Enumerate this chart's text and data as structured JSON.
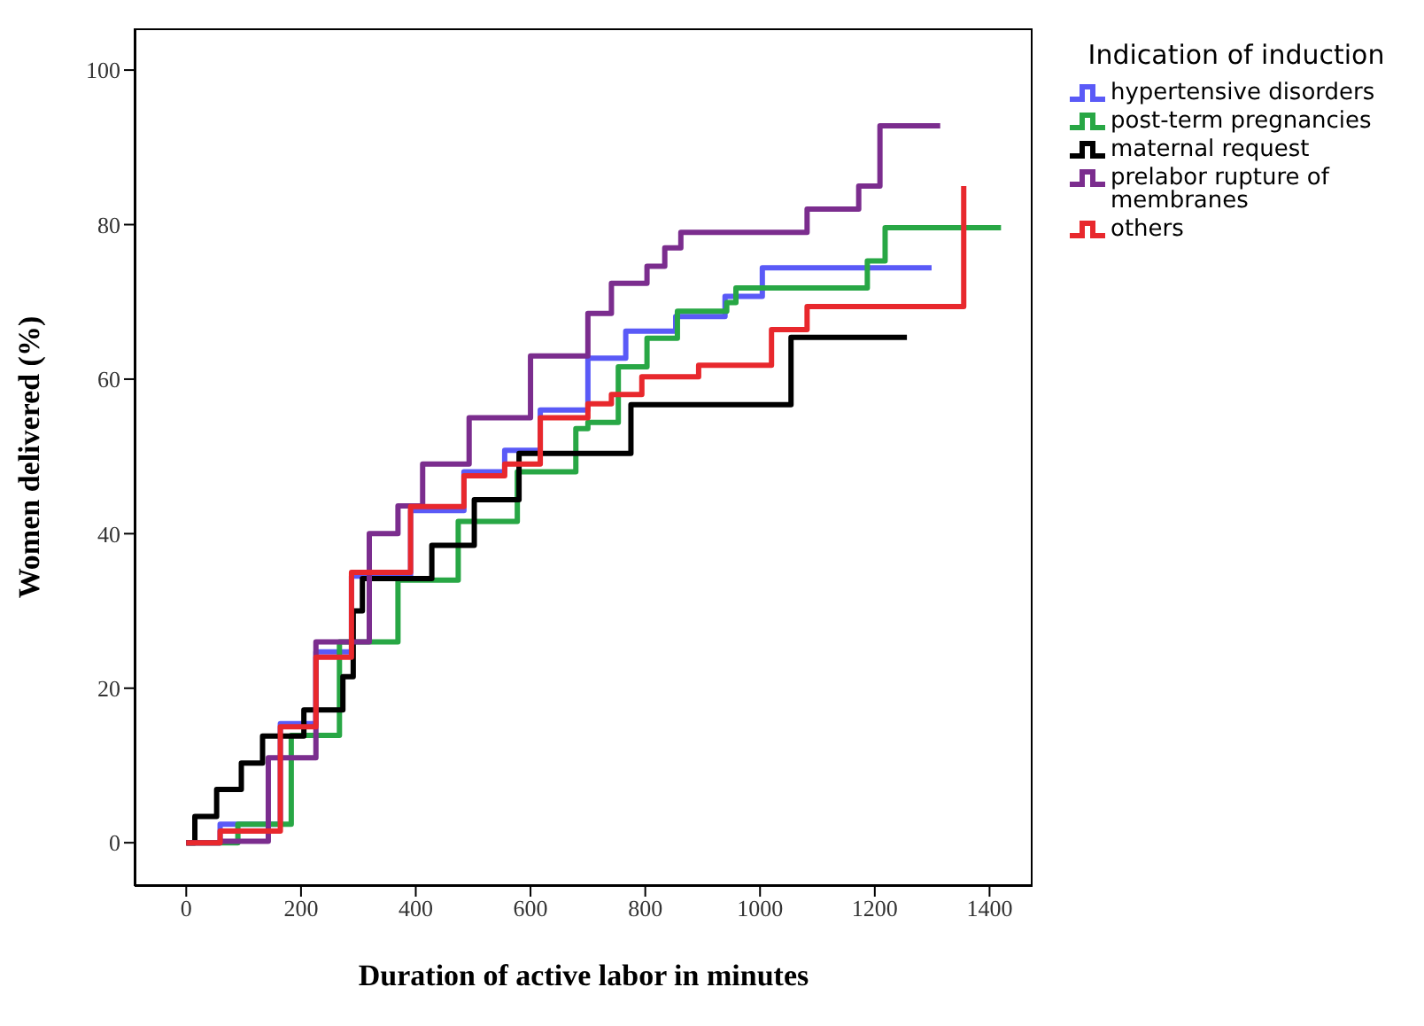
{
  "chart_data": {
    "type": "step",
    "xlabel": "Duration of active labor in minutes",
    "ylabel": "Women delivered (%)",
    "legend_title": "Indication of induction",
    "xlim": [
      -90,
      1475
    ],
    "ylim": [
      -5.6,
      105.4
    ],
    "xticks": [
      0,
      200,
      400,
      600,
      800,
      1000,
      1200,
      1400
    ],
    "yticks": [
      0,
      20,
      40,
      60,
      80,
      100
    ],
    "grid": false,
    "legend": "right",
    "marker": "none",
    "line_style": "solid",
    "series": [
      {
        "name": "hypertensive disorders",
        "color": "#5a5af7",
        "x": [
          0,
          59,
          164,
          226,
          288,
          391,
          484,
          555,
          617,
          700,
          766,
          853,
          939,
          1004,
          1299
        ],
        "values": [
          0,
          2.4,
          15.4,
          24.7,
          34.5,
          43,
          48,
          50.8,
          56,
          62.7,
          66.2,
          68.1,
          70.7,
          74.4,
          74.4
        ]
      },
      {
        "name": "post-term pregnancies",
        "color": "#28a745",
        "x": [
          0,
          90,
          183,
          267,
          369,
          474,
          577,
          679,
          700,
          753,
          803,
          856,
          942,
          958,
          1187,
          1218,
          1420
        ],
        "values": [
          0,
          2.4,
          13.9,
          26,
          34,
          41.6,
          48,
          53.6,
          54.4,
          61.6,
          65.3,
          68.8,
          69.9,
          71.8,
          75.3,
          79.6,
          79.6
        ]
      },
      {
        "name": "maternal request",
        "color": "#000000",
        "x": [
          0,
          15,
          53,
          96,
          133,
          205,
          273,
          291,
          307,
          428,
          502,
          580,
          775,
          1054,
          1256
        ],
        "values": [
          0,
          3.4,
          6.9,
          10.3,
          13.8,
          17.2,
          21.5,
          30,
          34.2,
          38.5,
          44.4,
          50.4,
          56.7,
          65.4,
          65.4
        ]
      },
      {
        "name": "prelabor rupture of membranes",
        "color": "#7b2d8e",
        "x": [
          0,
          59,
          143,
          226,
          319,
          369,
          412,
          493,
          600,
          700,
          741,
          803,
          834,
          862,
          1082,
          1172,
          1209,
          1314
        ],
        "values": [
          0,
          0.2,
          11,
          26,
          40,
          43.6,
          49,
          55,
          63,
          68.5,
          72.4,
          74.6,
          77,
          79,
          82,
          85,
          92.8,
          92.8
        ]
      },
      {
        "name": "others",
        "color": "#e8282d",
        "x": [
          0,
          59,
          164,
          226,
          288,
          391,
          484,
          555,
          617,
          700,
          741,
          794,
          893,
          1020,
          1082,
          1355
        ],
        "values": [
          0,
          1.5,
          15,
          24,
          35,
          43.5,
          47.5,
          49,
          55,
          56.8,
          58,
          60.3,
          61.8,
          66.4,
          69.4,
          85
        ]
      }
    ]
  }
}
